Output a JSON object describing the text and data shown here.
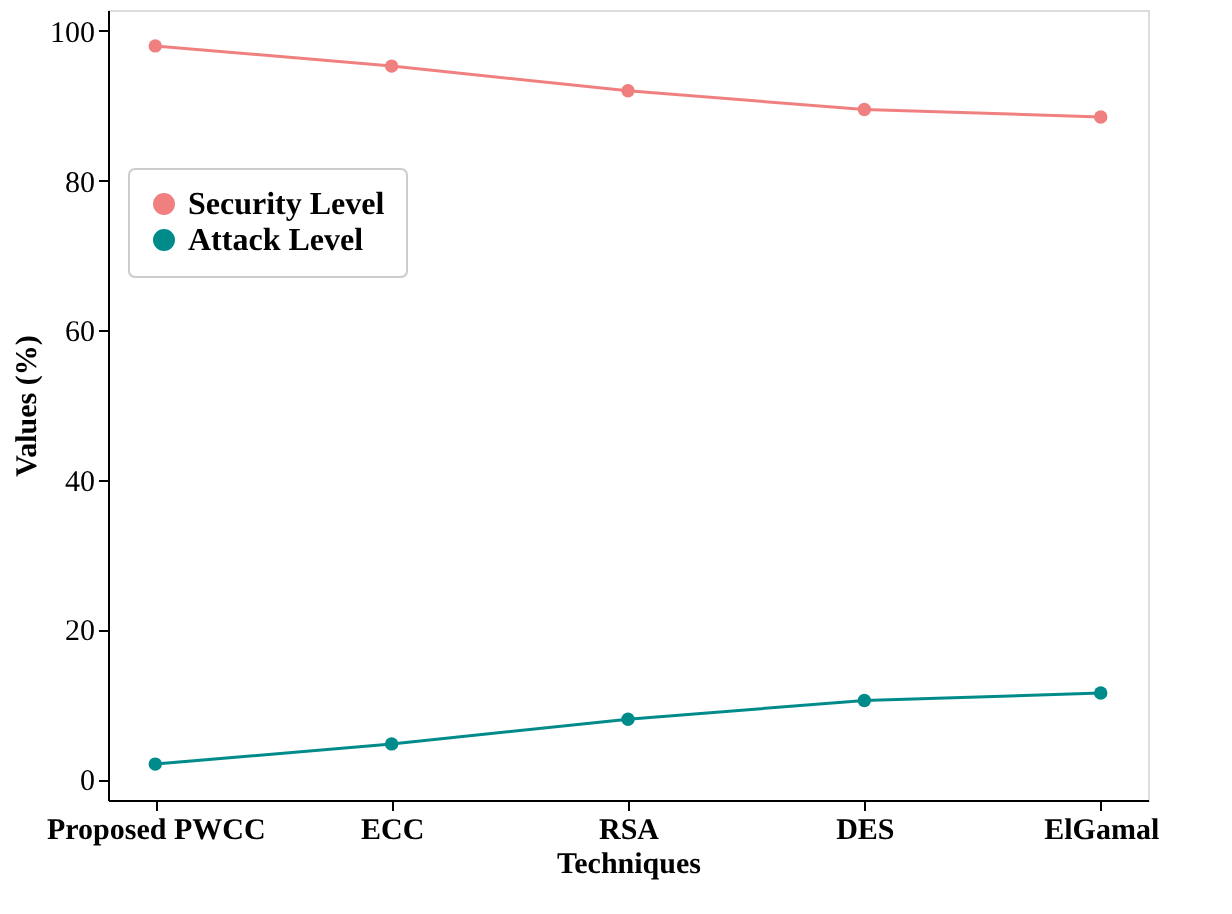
{
  "chart_data": {
    "type": "line",
    "xlabel": "Techniques",
    "ylabel": "Values (%)",
    "categories": [
      "Proposed PWCC",
      "ECC",
      "RSA",
      "DES",
      "ElGamal"
    ],
    "series": [
      {
        "name": "Security Level",
        "color": "#f08080",
        "values": [
          98,
          95.3,
          92,
          89.5,
          88.5
        ]
      },
      {
        "name": "Attack Level",
        "color": "#008b8b",
        "values": [
          2,
          4.7,
          8,
          10.5,
          11.5
        ]
      }
    ],
    "ylim": [
      -2.8,
      102.8
    ],
    "yticks": [
      0,
      20,
      40,
      60,
      80,
      100
    ],
    "grid": false,
    "legend": "left",
    "marker": "circle",
    "line_style": "solid"
  }
}
